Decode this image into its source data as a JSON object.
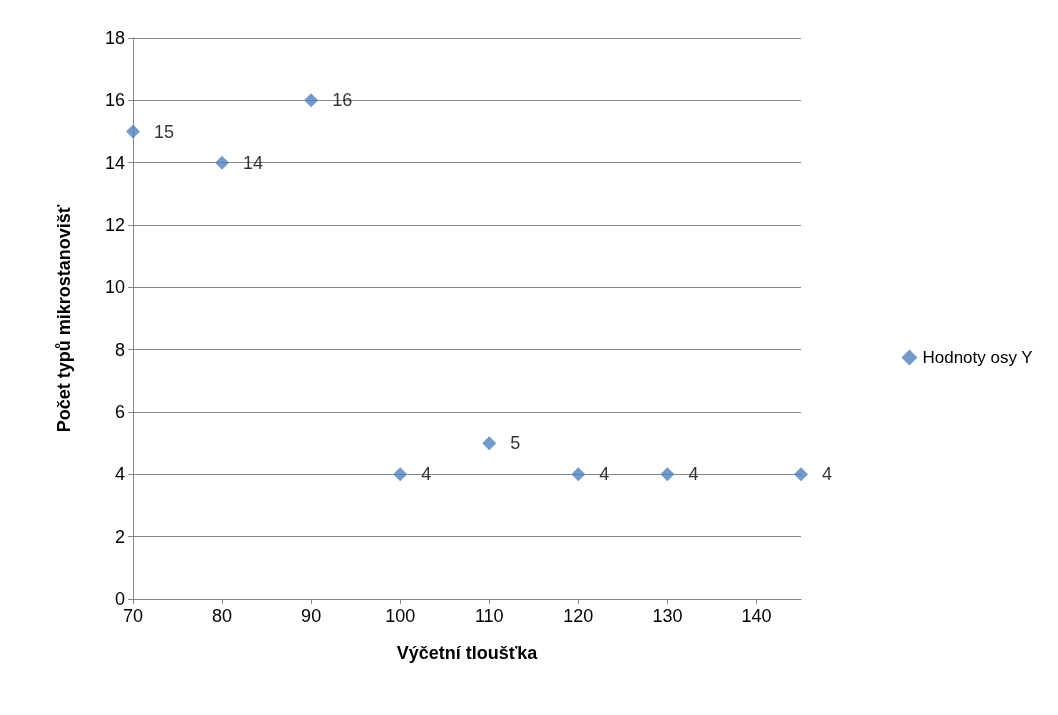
{
  "chart_data": {
    "type": "scatter",
    "xlabel": "Výčetní tloušťka",
    "ylabel": "Počet typů mikrostanovišť",
    "x": [
      70,
      80,
      90,
      100,
      110,
      120,
      130,
      145
    ],
    "series": [
      {
        "name": "Hodnoty osy Y",
        "color": "#4f81bd",
        "values": [
          15,
          14,
          16,
          4,
          5,
          4,
          4,
          4
        ]
      }
    ],
    "xlim": [
      70,
      145
    ],
    "xticks": [
      70,
      80,
      90,
      100,
      110,
      120,
      130,
      140
    ],
    "ylim": [
      0,
      18
    ],
    "yticks": [
      0,
      2,
      4,
      6,
      8,
      10,
      12,
      14,
      16,
      18
    ],
    "grid": "y",
    "legend": "right",
    "marker": "diamond",
    "data_labels": true
  }
}
